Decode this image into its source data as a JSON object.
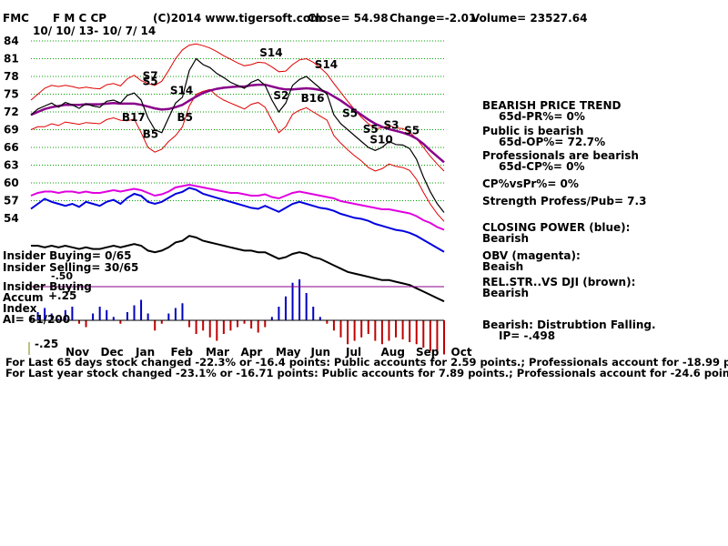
{
  "header": {
    "ticker": "FMC",
    "name": "F M C CP",
    "copyright": "(C)2014 www.tigersoft.com",
    "close": "Close=  54.98",
    "change": "Change=-2.01",
    "volume": "Volume= 23527.64",
    "date_range": "10/ 10/ 13- 10/ 7/ 14"
  },
  "right_panel": {
    "trend_title": "BEARISH PRICE TREND",
    "pr": "65d-PR%= 0%",
    "public": "Public is bearish",
    "op": "65d-OP%= 72.7%",
    "professionals": "Professionals are bearish",
    "cp": "65d-CP%= 0%",
    "cpvspr": "CP%vsPr%=  0%",
    "strength": "Strength Profess/Pub= 7.3",
    "closing_power_title": "CLOSING POWER (blue):",
    "closing_power_value": "Bearish",
    "obv_title": "OBV (magenta):",
    "obv_value": "Beaish",
    "relstr_title": "REL.STR..VS DJI (brown):",
    "relstr_value": "Bearish",
    "distribution": "Bearish: Distrubtion Falling.",
    "ip": "IP= -.498"
  },
  "left_labels": {
    "insider_buying_count": "Insider Buying= 0/65",
    "insider_selling_count": "Insider Selling= 30/65",
    "insider_buying": "Insider Buying",
    "accum": "Accum",
    "accum_plus": "+.25",
    "index": "Index",
    "ai": "AI= 61/200",
    "minus50": "-.50",
    "minus25": "-.25"
  },
  "footer": {
    "line1": "For Last 65 days stock changed -22.3% or -16.4 points:  Public accounts for  2.59 points.;  Professionals account for -18.99 points.",
    "line2": "For Last year stock changed -23.1% or -16.71 points:  Public accounts for  7.89 points.;  Professionals account for -24.6 points."
  },
  "chart_data": {
    "type": "line",
    "title": "F M C CP",
    "ylim": [
      54,
      84
    ],
    "y_ticks": [
      "84",
      "81",
      "78",
      "75",
      "72",
      "69",
      "66",
      "63",
      "60",
      "57",
      "54"
    ],
    "x_ticks": [
      "Nov",
      "Dec",
      "Jan",
      "Feb",
      "Mar",
      "Apr",
      "May",
      "Jun",
      "Jul",
      "Aug",
      "Sep",
      "Oct"
    ],
    "grid": "dotted-green",
    "price": [
      71.5,
      72.5,
      73,
      73.5,
      72.8,
      73.6,
      73.2,
      72.6,
      73.4,
      73,
      72.8,
      73.8,
      74,
      73.5,
      74.8,
      75.2,
      74,
      71,
      69,
      68.5,
      71,
      73.5,
      74.5,
      79,
      81,
      80,
      79.5,
      78.5,
      77.8,
      77,
      76.5,
      76,
      77,
      77.5,
      76.5,
      74,
      72,
      73.5,
      76.5,
      77.5,
      78,
      77,
      76,
      75,
      71.5,
      70,
      69,
      68,
      67,
      66,
      65.5,
      66,
      67,
      66.5,
      66.4,
      65.8,
      64,
      61,
      58.5,
      56.5,
      55
    ],
    "ma": [
      71.5,
      72,
      72.5,
      72.8,
      73,
      73.2,
      73.2,
      73.2,
      73.3,
      73.3,
      73.3,
      73.4,
      73.5,
      73.4,
      73.4,
      73.4,
      73.2,
      72.9,
      72.6,
      72.4,
      72.5,
      72.8,
      73.2,
      73.9,
      74.6,
      75.2,
      75.6,
      75.9,
      76.1,
      76.2,
      76.3,
      76.3,
      76.5,
      76.6,
      76.6,
      76.3,
      76,
      75.8,
      75.8,
      75.9,
      76,
      75.9,
      75.7,
      75.3,
      74.6,
      73.9,
      73.1,
      72.3,
      71.5,
      70.7,
      70,
      69.5,
      69.1,
      68.8,
      68.5,
      68.1,
      67.5,
      66.6,
      65.5,
      64.5,
      63.5
    ],
    "upper_band": [
      74,
      75,
      76,
      76.5,
      76.3,
      76.5,
      76.3,
      76,
      76.2,
      76,
      75.9,
      76.6,
      76.8,
      76.4,
      77.6,
      78.2,
      77.3,
      76.8,
      76.5,
      77.2,
      79,
      81,
      82.5,
      83.3,
      83.5,
      83.2,
      82.8,
      82.2,
      81.5,
      80.9,
      80.3,
      79.8,
      80,
      80.4,
      80.3,
      79.6,
      78.8,
      78.9,
      80,
      80.8,
      81,
      80.4,
      79.5,
      78.4,
      76.8,
      75.3,
      73.8,
      72.4,
      71.1,
      70,
      69.2,
      69.3,
      69.7,
      69.3,
      69.2,
      68.6,
      67.5,
      66,
      64.5,
      63.2,
      62
    ],
    "lower_band": [
      69,
      69.5,
      69.5,
      70,
      69.7,
      70.3,
      70.1,
      69.9,
      70.2,
      70.1,
      70,
      70.7,
      71,
      70.6,
      70.5,
      70.8,
      68.5,
      66,
      65.2,
      65.7,
      67,
      68,
      69.5,
      73,
      75,
      75.5,
      75.8,
      74.7,
      74,
      73.5,
      73,
      72.5,
      73.3,
      73.6,
      72.8,
      70.6,
      68.5,
      69.5,
      71.6,
      72.3,
      72.7,
      72,
      71.3,
      70.6,
      68,
      66.7,
      65.6,
      64.6,
      63.7,
      62.6,
      62,
      62.4,
      63.2,
      62.8,
      62.6,
      62.1,
      60.6,
      58.4,
      56.4,
      54.8,
      53.5
    ],
    "closing_power_blue": [
      0.55,
      0.6,
      0.65,
      0.62,
      0.6,
      0.58,
      0.6,
      0.57,
      0.62,
      0.6,
      0.58,
      0.62,
      0.64,
      0.6,
      0.66,
      0.7,
      0.68,
      0.62,
      0.6,
      0.62,
      0.66,
      0.7,
      0.72,
      0.76,
      0.74,
      0.7,
      0.68,
      0.66,
      0.64,
      0.62,
      0.6,
      0.58,
      0.56,
      0.55,
      0.58,
      0.55,
      0.52,
      0.56,
      0.6,
      0.62,
      0.6,
      0.58,
      0.56,
      0.55,
      0.53,
      0.5,
      0.48,
      0.46,
      0.45,
      0.43,
      0.4,
      0.38,
      0.36,
      0.34,
      0.33,
      0.31,
      0.28,
      0.24,
      0.2,
      0.16,
      0.12
    ],
    "obv_magenta": [
      0.7,
      0.72,
      0.73,
      0.73,
      0.72,
      0.73,
      0.73,
      0.72,
      0.73,
      0.72,
      0.72,
      0.73,
      0.74,
      0.73,
      0.74,
      0.75,
      0.74,
      0.72,
      0.7,
      0.71,
      0.73,
      0.76,
      0.77,
      0.78,
      0.77,
      0.76,
      0.75,
      0.74,
      0.73,
      0.72,
      0.72,
      0.71,
      0.7,
      0.7,
      0.71,
      0.69,
      0.68,
      0.7,
      0.72,
      0.73,
      0.72,
      0.71,
      0.7,
      0.69,
      0.68,
      0.66,
      0.65,
      0.64,
      0.63,
      0.62,
      0.61,
      0.6,
      0.6,
      0.59,
      0.58,
      0.57,
      0.55,
      0.52,
      0.5,
      0.47,
      0.45
    ],
    "relstr_brown": [
      0.5,
      0.5,
      0.49,
      0.5,
      0.49,
      0.5,
      0.49,
      0.48,
      0.49,
      0.48,
      0.48,
      0.49,
      0.5,
      0.49,
      0.5,
      0.51,
      0.5,
      0.47,
      0.46,
      0.47,
      0.49,
      0.52,
      0.53,
      0.56,
      0.55,
      0.53,
      0.52,
      0.51,
      0.5,
      0.49,
      0.48,
      0.47,
      0.47,
      0.46,
      0.46,
      0.44,
      0.42,
      0.43,
      0.45,
      0.46,
      0.45,
      0.43,
      0.42,
      0.4,
      0.38,
      0.36,
      0.34,
      0.33,
      0.32,
      0.31,
      0.3,
      0.29,
      0.29,
      0.28,
      0.27,
      0.26,
      0.24,
      0.22,
      0.2,
      0.18,
      0.16
    ],
    "accum_index": [
      0.05,
      0.12,
      0.18,
      0.1,
      0.02,
      0.15,
      0.2,
      -0.05,
      -0.1,
      0.1,
      0.2,
      0.15,
      0.05,
      -0.05,
      0.12,
      0.22,
      0.3,
      0.1,
      -0.15,
      -0.05,
      0.1,
      0.18,
      0.25,
      -0.1,
      -0.2,
      -0.15,
      -0.25,
      -0.3,
      -0.2,
      -0.15,
      -0.1,
      -0.05,
      -0.12,
      -0.18,
      -0.1,
      0.05,
      0.2,
      0.35,
      0.55,
      0.6,
      0.4,
      0.2,
      0.05,
      -0.05,
      -0.15,
      -0.25,
      -0.35,
      -0.3,
      -0.25,
      -0.2,
      -0.3,
      -0.35,
      -0.3,
      -0.25,
      -0.28,
      -0.32,
      -0.35,
      -0.4,
      -0.45,
      -0.48,
      -0.5
    ],
    "signals": [
      {
        "label": "S7",
        "color": "#000000"
      },
      {
        "label": "S5",
        "color": "#000000"
      },
      {
        "label": "S14",
        "color": "#000000"
      },
      {
        "label": "S14",
        "color": "#000000"
      },
      {
        "label": "S2",
        "color": "#000000"
      },
      {
        "label": "S14",
        "color": "#000000"
      },
      {
        "label": "S5",
        "color": "#000000"
      },
      {
        "label": "S5",
        "color": "#000000"
      },
      {
        "label": "S10",
        "color": "#000000"
      },
      {
        "label": "S3",
        "color": "#000000"
      },
      {
        "label": "S5",
        "color": "#000000"
      },
      {
        "label": "B17",
        "color": "#000000"
      },
      {
        "label": "B5",
        "color": "#000000"
      },
      {
        "label": "B5",
        "color": "#000000"
      },
      {
        "label": "B16",
        "color": "#000000"
      }
    ],
    "colors": {
      "price": "#000000",
      "ma": "#8a008a",
      "bands": "#e00000",
      "grid": "#00a000",
      "closing_power": "#0000e0",
      "obv": "#e000e0",
      "relstr": "#000000",
      "accum_pos": "#0000c0",
      "accum_neg": "#c00000"
    }
  }
}
